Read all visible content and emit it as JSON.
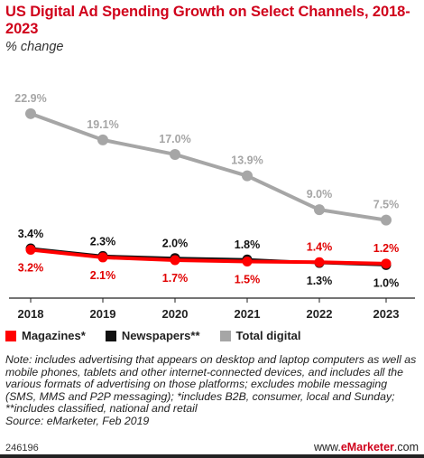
{
  "title": "US Digital Ad Spending Growth on Select Channels, 2018-2023",
  "subtitle": "% change",
  "colors": {
    "title": "#d0021b",
    "magazines": "#ff0000",
    "newspapers": "#111111",
    "total_digital": "#a6a6a6"
  },
  "legend": [
    "Magazines*",
    "Newspapers**",
    "Total digital"
  ],
  "note": "Note: includes advertising that appears on desktop and laptop computers as well as mobile phones, tablets and other internet-connected devices, and includes all the various formats of advertising on those platforms; excludes mobile messaging (SMS, MMS and P2P messaging); *includes B2B, consumer, local and Sunday; **includes classified, national and retail",
  "source": "Source: eMarketer, Feb 2019",
  "chart_id": "246196",
  "brand_prefix": "www.",
  "brand_name": "eMarketer",
  "brand_suffix": ".com",
  "chart_data": {
    "type": "line",
    "x": [
      "2018",
      "2019",
      "2020",
      "2021",
      "2022",
      "2023"
    ],
    "series": [
      {
        "name": "Total digital",
        "values": [
          22.9,
          19.1,
          17.0,
          13.9,
          9.0,
          7.5
        ],
        "labels": [
          "22.9%",
          "19.1%",
          "17.0%",
          "13.9%",
          "9.0%",
          "7.5%"
        ]
      },
      {
        "name": "Newspapers**",
        "values": [
          3.4,
          2.3,
          2.0,
          1.8,
          1.3,
          1.0
        ],
        "labels": [
          "3.4%",
          "2.3%",
          "2.0%",
          "1.8%",
          "1.3%",
          "1.0%"
        ]
      },
      {
        "name": "Magazines*",
        "values": [
          3.2,
          2.1,
          1.7,
          1.5,
          1.4,
          1.2
        ],
        "labels": [
          "3.2%",
          "2.1%",
          "1.7%",
          "1.5%",
          "1.4%",
          "1.2%"
        ]
      }
    ],
    "ylim": [
      0,
      25
    ],
    "grid": false,
    "legend_position": "bottom-left"
  }
}
